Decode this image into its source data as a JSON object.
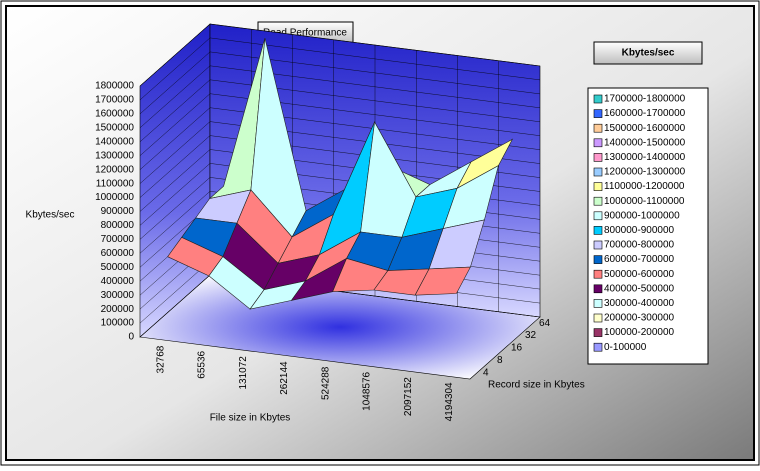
{
  "chart_data": {
    "type": "surface",
    "title": "Read Performance",
    "zlabel": "Kbytes/sec",
    "xlabel": "File size in Kbytes",
    "ylabel": "Record size in Kbytes",
    "legend_title": "Kbytes/sec",
    "x": [
      "32768",
      "65536",
      "131072",
      "262144",
      "524288",
      "1048576",
      "2097152",
      "4194304"
    ],
    "y": [
      "4",
      "8",
      "16",
      "32",
      "64"
    ],
    "values": [
      [
        550000,
        450000,
        250000,
        350000,
        450000,
        500000,
        500000,
        550000
      ],
      [
        600000,
        500000,
        300000,
        400000,
        600000,
        550000,
        600000,
        650000
      ],
      [
        650000,
        650000,
        400000,
        500000,
        700000,
        700000,
        800000,
        900000
      ],
      [
        700000,
        800000,
        500000,
        700000,
        1400000,
        900000,
        1000000,
        1200000
      ],
      [
        700000,
        1800000,
        600000,
        800000,
        1000000,
        900000,
        1100000,
        1300000
      ]
    ],
    "zlim": [
      0,
      1800000
    ],
    "zticks": [
      0,
      100000,
      200000,
      300000,
      400000,
      500000,
      600000,
      700000,
      800000,
      900000,
      1000000,
      1100000,
      1200000,
      1300000,
      1400000,
      1500000,
      1600000,
      1700000,
      1800000
    ],
    "legend": [
      {
        "name": "1700000-1800000",
        "color": "#33cccc"
      },
      {
        "name": "1600000-1700000",
        "color": "#3366ff"
      },
      {
        "name": "1500000-1600000",
        "color": "#ffcc99"
      },
      {
        "name": "1400000-1500000",
        "color": "#cc99ff"
      },
      {
        "name": "1300000-1400000",
        "color": "#ff99cc"
      },
      {
        "name": "1200000-1300000",
        "color": "#99ccff"
      },
      {
        "name": "1100000-1200000",
        "color": "#ffff99"
      },
      {
        "name": "1000000-1100000",
        "color": "#ccffcc"
      },
      {
        "name": "900000-1000000",
        "color": "#ccffff"
      },
      {
        "name": "800000-900000",
        "color": "#00ccff"
      },
      {
        "name": "700000-800000",
        "color": "#ccccff"
      },
      {
        "name": "600000-700000",
        "color": "#0066cc"
      },
      {
        "name": "500000-600000",
        "color": "#ff8080"
      },
      {
        "name": "400000-500000",
        "color": "#660066"
      },
      {
        "name": "300000-400000",
        "color": "#ccffff"
      },
      {
        "name": "200000-300000",
        "color": "#ffffcc"
      },
      {
        "name": "100000-200000",
        "color": "#993366"
      },
      {
        "name": "0-100000",
        "color": "#9999ff"
      }
    ]
  }
}
